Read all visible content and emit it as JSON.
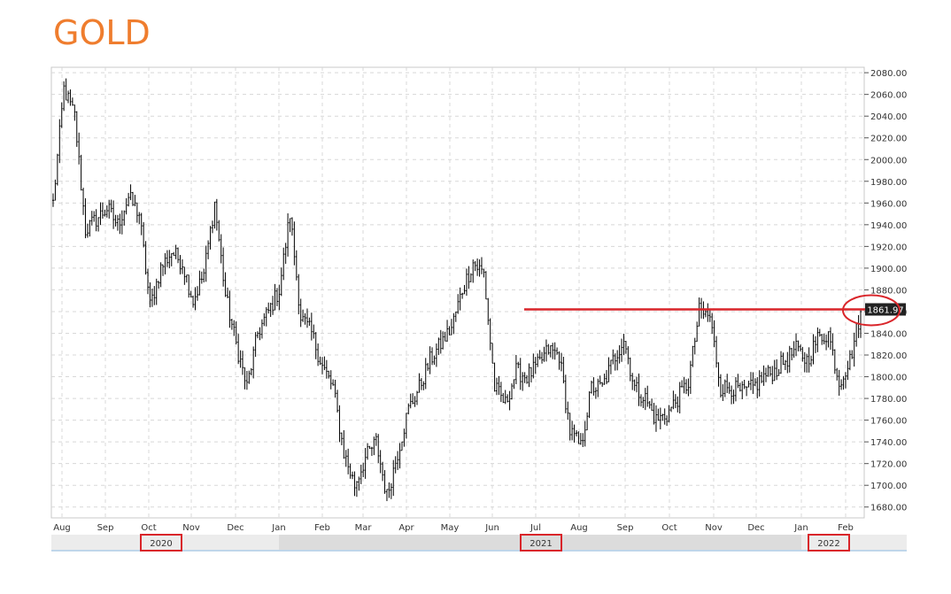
{
  "title": "GOLD",
  "colors": {
    "title": "#ef7d2e",
    "candle": "#000000",
    "annotation": "#d9252a",
    "grid": "#d8d8d8",
    "navigator_bg": "#ececec",
    "navigator_window": "#dcdcdc"
  },
  "chart_data": {
    "type": "candlestick",
    "title": "GOLD",
    "ylim": [
      1670,
      2085
    ],
    "y_ticks": [
      "2080.00",
      "2060.00",
      "2040.00",
      "2020.00",
      "2000.00",
      "1980.00",
      "1960.00",
      "1940.00",
      "1920.00",
      "1900.00",
      "1880.00",
      "1860.00",
      "1840.00",
      "1820.00",
      "1800.00",
      "1780.00",
      "1760.00",
      "1740.00",
      "1720.00",
      "1700.00",
      "1680.00"
    ],
    "x_ticks": [
      "Aug",
      "Sep",
      "Oct",
      "Nov",
      "Dec",
      "Jan",
      "Feb",
      "Mar",
      "Apr",
      "May",
      "Jun",
      "Jul",
      "Aug",
      "Sep",
      "Oct",
      "Nov",
      "Dec",
      "Jan",
      "Feb"
    ],
    "years": [
      "2020",
      "2021",
      "2022"
    ],
    "last_price": "1861.97",
    "grid": true,
    "series": [
      {
        "x": [
          "Aug",
          "Aug",
          "Aug",
          "Aug",
          "Aug",
          "Sep",
          "Sep",
          "Sep",
          "Sep",
          "Oct",
          "Oct",
          "Oct",
          "Oct",
          "Nov",
          "Nov",
          "Nov",
          "Nov",
          "Dec",
          "Dec",
          "Dec",
          "Dec",
          "Jan",
          "Jan",
          "Jan",
          "Jan",
          "Feb",
          "Feb",
          "Feb",
          "Feb",
          "Mar",
          "Mar",
          "Mar",
          "Mar",
          "Apr",
          "Apr",
          "Apr",
          "Apr",
          "May",
          "May",
          "May",
          "May",
          "Jun",
          "Jun",
          "Jun",
          "Jun",
          "Jul",
          "Jul",
          "Jul",
          "Jul",
          "Aug",
          "Aug",
          "Aug",
          "Aug",
          "Sep",
          "Sep",
          "Sep",
          "Sep",
          "Oct",
          "Oct",
          "Oct",
          "Oct",
          "Nov",
          "Nov",
          "Nov",
          "Nov",
          "Dec",
          "Dec",
          "Dec",
          "Dec",
          "Jan",
          "Jan",
          "Jan",
          "Jan",
          "Feb",
          "Feb",
          "Feb"
        ],
        "close": [
          1960,
          2065,
          2040,
          1935,
          1945,
          1955,
          1940,
          1965,
          1950,
          1865,
          1900,
          1915,
          1905,
          1870,
          1895,
          1960,
          1875,
          1830,
          1790,
          1840,
          1860,
          1880,
          1950,
          1855,
          1840,
          1810,
          1790,
          1730,
          1700,
          1725,
          1740,
          1690,
          1730,
          1770,
          1790,
          1815,
          1830,
          1845,
          1880,
          1905,
          1895,
          1790,
          1775,
          1805,
          1800,
          1810,
          1825,
          1820,
          1750,
          1735,
          1790,
          1790,
          1815,
          1835,
          1790,
          1780,
          1760,
          1765,
          1780,
          1795,
          1860,
          1855,
          1790,
          1790,
          1785,
          1790,
          1800,
          1805,
          1815,
          1825,
          1815,
          1835,
          1840,
          1795,
          1815,
          1860
        ]
      }
    ]
  },
  "annotation": {
    "level": 1862,
    "from": "Jul",
    "to": "Feb",
    "highlight": "1861.97"
  }
}
